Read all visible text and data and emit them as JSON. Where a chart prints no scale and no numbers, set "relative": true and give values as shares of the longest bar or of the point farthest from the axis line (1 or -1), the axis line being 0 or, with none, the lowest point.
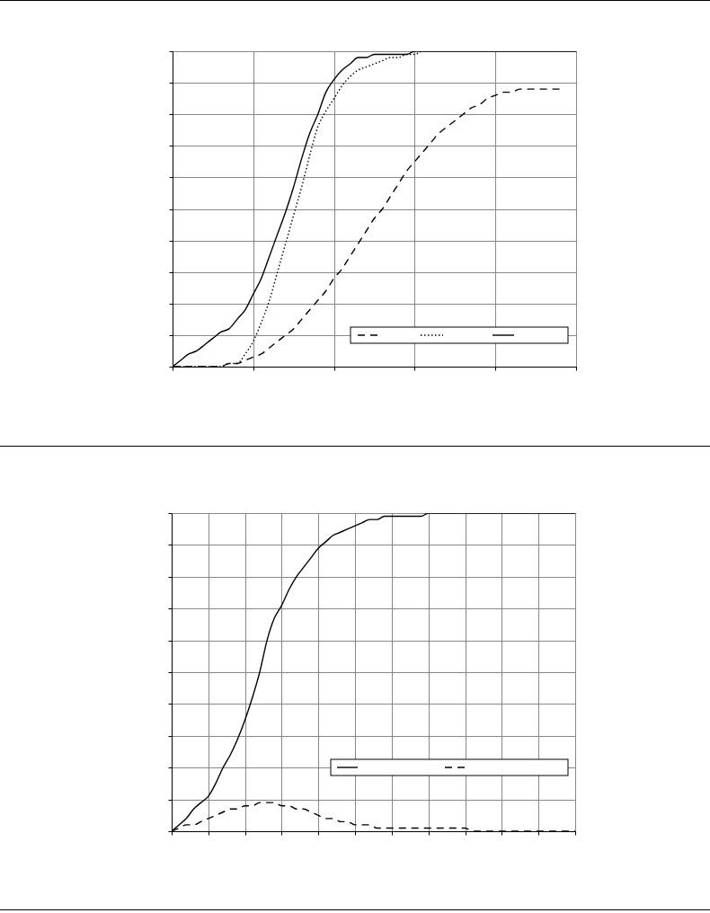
{
  "chart_data": [
    {
      "type": "line",
      "relative": true,
      "grid": true,
      "categories": [
        null,
        null,
        null,
        null,
        null,
        null,
        null,
        null,
        null,
        null,
        null,
        null,
        null,
        null,
        null,
        null,
        null,
        null,
        null,
        null,
        null,
        null,
        null,
        null,
        null,
        null,
        null,
        null,
        null,
        null,
        null,
        null,
        null,
        null,
        null,
        null,
        null,
        null,
        null,
        null,
        null,
        null,
        null,
        null,
        null,
        null,
        null,
        null,
        null,
        null,
        null
      ],
      "series": [
        {
          "color": "#000000",
          "line_style": "dashed",
          "values": [
            0,
            0,
            0,
            0,
            0,
            0,
            0,
            0.01,
            0.01,
            0.02,
            0.03,
            0.04,
            0.06,
            0.08,
            0.1,
            0.12,
            0.15,
            0.18,
            0.21,
            0.24,
            0.28,
            0.31,
            0.35,
            0.39,
            0.43,
            0.47,
            0.5,
            0.54,
            0.58,
            0.62,
            0.65,
            0.68,
            0.71,
            0.74,
            0.76,
            0.78,
            0.8,
            0.82,
            0.83,
            0.85,
            0.86,
            0.87,
            0.87,
            0.88,
            0.88,
            0.88,
            0.88,
            0.88,
            0.88,
            null,
            null
          ]
        },
        {
          "color": "#000000",
          "line_style": "dotted",
          "values": [
            0,
            0,
            0,
            0,
            0,
            0,
            0,
            0.01,
            0.01,
            0.04,
            0.08,
            0.14,
            0.21,
            0.3,
            0.39,
            0.48,
            0.57,
            0.67,
            0.76,
            0.81,
            0.85,
            0.89,
            0.92,
            0.94,
            0.95,
            0.96,
            0.97,
            0.98,
            0.98,
            0.99,
            0.99,
            1,
            1,
            1,
            1,
            1,
            1,
            1,
            1,
            1,
            1,
            1,
            1,
            1,
            1,
            1,
            1,
            1,
            1,
            1,
            1
          ]
        },
        {
          "color": "#000000",
          "line_style": "solid",
          "values": [
            0,
            0.02,
            0.04,
            0.05,
            0.07,
            0.09,
            0.11,
            0.12,
            0.15,
            0.18,
            0.23,
            0.28,
            0.35,
            0.42,
            0.49,
            0.57,
            0.66,
            0.74,
            0.8,
            0.87,
            0.91,
            0.94,
            0.96,
            0.98,
            0.98,
            0.99,
            0.99,
            0.99,
            0.99,
            0.99,
            1,
            1,
            1,
            1,
            1,
            1,
            1,
            1,
            1,
            1,
            1,
            1,
            1,
            1,
            1,
            1,
            1,
            1,
            1,
            1,
            1
          ]
        }
      ]
    },
    {
      "type": "line",
      "relative": true,
      "grid": true,
      "categories": [
        null,
        null,
        null,
        null,
        null,
        null,
        null,
        null,
        null,
        null,
        null,
        null,
        null,
        null,
        null,
        null,
        null,
        null,
        null,
        null,
        null,
        null,
        null,
        null,
        null,
        null,
        null,
        null,
        null,
        null,
        null,
        null,
        null,
        null,
        null,
        null,
        null,
        null,
        null,
        null,
        null,
        null,
        null,
        null,
        null,
        null,
        null,
        null,
        null,
        null,
        null,
        null,
        null,
        null,
        null,
        null
      ],
      "series": [
        {
          "color": "#000000",
          "line_style": "solid",
          "values": [
            0,
            0.02,
            0.04,
            0.07,
            0.09,
            0.11,
            0.15,
            0.2,
            0.24,
            0.29,
            0.35,
            0.42,
            0.5,
            0.6,
            0.67,
            0.71,
            0.76,
            0.8,
            0.83,
            0.86,
            0.89,
            0.91,
            0.93,
            0.94,
            0.95,
            0.96,
            0.97,
            0.98,
            0.98,
            0.99,
            0.99,
            0.99,
            0.99,
            0.99,
            0.99,
            1,
            1,
            1,
            1,
            1,
            1,
            1,
            1,
            1,
            1,
            1,
            1,
            1,
            1,
            1,
            1,
            1,
            1,
            1,
            1,
            1
          ]
        },
        {
          "color": "#000000",
          "line_style": "dashed",
          "values": [
            0,
            0.01,
            0.02,
            0.02,
            0.03,
            0.04,
            0.05,
            0.06,
            0.07,
            0.07,
            0.08,
            0.08,
            0.09,
            0.09,
            0.09,
            0.08,
            0.08,
            0.07,
            0.07,
            0.06,
            0.05,
            0.04,
            0.04,
            0.03,
            0.03,
            0.02,
            0.02,
            0.02,
            0.01,
            0.01,
            0.01,
            0.01,
            0.01,
            0.01,
            0.01,
            0.01,
            0.01,
            0.01,
            0.01,
            0.01,
            0.01,
            0,
            0,
            0,
            0,
            0,
            0,
            0,
            0,
            0,
            0,
            0,
            0,
            0,
            0,
            0
          ]
        }
      ]
    }
  ]
}
